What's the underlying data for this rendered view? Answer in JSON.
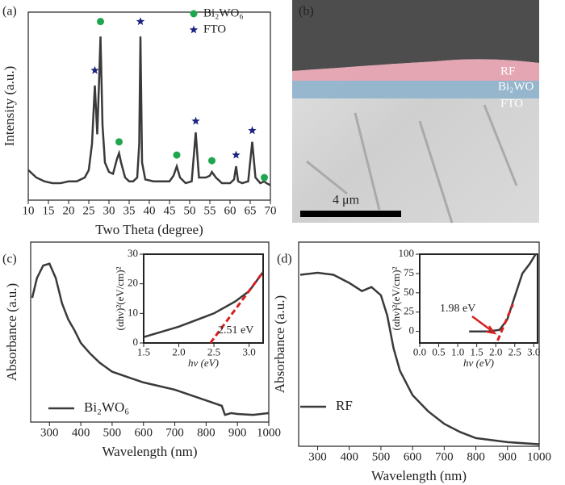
{
  "chart_data": [
    {
      "type": "line",
      "label": "(a)",
      "xlabel": "Two Theta (degree)",
      "ylabel": "Intensity (a.u.)",
      "xlim": [
        10,
        70
      ],
      "ylim": [
        0,
        100
      ],
      "xticks": [
        10,
        15,
        20,
        25,
        30,
        35,
        40,
        45,
        50,
        55,
        60,
        65,
        70
      ],
      "series": [
        {
          "color": "#3a3a3a",
          "x": [
            10,
            12,
            14,
            16,
            18,
            20,
            22,
            24,
            25,
            25.8,
            26.5,
            27.1,
            27.5,
            27.9,
            28.4,
            29,
            30,
            31,
            32,
            32.5,
            33,
            34,
            35,
            36,
            37,
            37.5,
            37.8,
            38.2,
            39,
            41,
            43,
            45,
            46,
            46.8,
            47.6,
            49,
            50.5,
            51.5,
            52.3,
            54,
            55,
            55.5,
            56.5,
            58,
            60,
            61,
            61.5,
            62,
            63,
            64.5,
            65.5,
            66.3,
            67.5,
            68.5,
            69,
            70
          ],
          "values": [
            16,
            12,
            10,
            9,
            9,
            10,
            10,
            12,
            16,
            30,
            61,
            35,
            60,
            87,
            40,
            20,
            15,
            14,
            22,
            25,
            20,
            12,
            10,
            10,
            12,
            30,
            87,
            20,
            11,
            10,
            10,
            10,
            13,
            18,
            12,
            9,
            10,
            36,
            12,
            12,
            13,
            15,
            12,
            9,
            9,
            11,
            18,
            10,
            9,
            10,
            31,
            12,
            9,
            10,
            9,
            8
          ]
        },
        {
          "name": "Bi₂WO₆",
          "marker": "circle",
          "color": "#1fa64f",
          "x": [
            27.9,
            32.5,
            46.8,
            55.5,
            68.5
          ],
          "values": [
            95,
            31,
            24,
            21,
            12
          ]
        },
        {
          "name": "FTO",
          "marker": "star",
          "color": "#1a237e",
          "x": [
            26.5,
            37.8,
            51.5,
            61.5,
            65.5
          ],
          "values": [
            69,
            95,
            42,
            24,
            37
          ]
        }
      ]
    },
    {
      "type": "line",
      "label": "(c)",
      "xlabel": "Wavelength (nm)",
      "ylabel": "Absorbance (a.u.)",
      "xlim": [
        240,
        1000
      ],
      "ylim": [
        0,
        100
      ],
      "xticks": [
        300,
        400,
        500,
        600,
        700,
        800,
        900,
        1000
      ],
      "series": [
        {
          "name": "Bi₂WO₆",
          "color": "#3a3a3a",
          "x": [
            245,
            260,
            280,
            300,
            320,
            340,
            360,
            380,
            400,
            430,
            460,
            500,
            550,
            600,
            650,
            700,
            750,
            800,
            850,
            860,
            880,
            900,
            950,
            1000
          ],
          "values": [
            69,
            80,
            87,
            88,
            80,
            66,
            57,
            51,
            44,
            38,
            33,
            28,
            25,
            22,
            20,
            18,
            15,
            12,
            9,
            4,
            5,
            4.5,
            4,
            5
          ]
        }
      ],
      "inset": {
        "type": "line",
        "xlabel": "hν (eV)",
        "ylabel": "(αhν)²(eV/cm)²",
        "annotation": "2.51 eV",
        "xlim": [
          1.5,
          3.2
        ],
        "ylim": [
          0,
          30
        ],
        "xticks": [
          1.5,
          {
            "value": 2.0,
            "label": "2.0"
          },
          2.5,
          {
            "value": 3.0,
            "label": "3.0"
          }
        ],
        "yticks": [
          0,
          10,
          20,
          30
        ],
        "series": [
          {
            "color": "#3a3a3a",
            "x": [
              1.5,
              2.0,
              2.5,
              2.8,
              3.0,
              3.2
            ],
            "values": [
              2,
              5.5,
              10,
              14,
              17.5,
              24
            ]
          },
          {
            "color": "#d62020",
            "dash": true,
            "x": [
              2.45,
              3.2
            ],
            "values": [
              0,
              24
            ]
          }
        ]
      }
    },
    {
      "type": "line",
      "label": "(d)",
      "xlabel": "Wavelength (nm)",
      "ylabel": "Absorbance (a.u.)",
      "xlim": [
        240,
        1000
      ],
      "ylim": [
        0,
        100
      ],
      "xticks": [
        300,
        400,
        500,
        600,
        700,
        800,
        900,
        1000
      ],
      "series": [
        {
          "name": "RF",
          "color": "#3a3a3a",
          "x": [
            245,
            300,
            350,
            400,
            440,
            470,
            500,
            520,
            540,
            560,
            600,
            650,
            700,
            750,
            800,
            850,
            900,
            1000
          ],
          "values": [
            84,
            85,
            84,
            80,
            76,
            78,
            74,
            64,
            48,
            37,
            25,
            17,
            11,
            7,
            4,
            3,
            2,
            1
          ]
        }
      ],
      "inset": {
        "type": "line",
        "xlabel": "hν (eV)",
        "ylabel": "(αhν)²(eV/cm)²",
        "annotation": "1.98 eV",
        "xlim": [
          0,
          3.1
        ],
        "ylim": [
          -15,
          100
        ],
        "xticks": [
          {
            "value": 0.0,
            "label": "0.0"
          },
          0.5,
          {
            "value": 1.0,
            "label": "1.0"
          },
          1.5,
          {
            "value": 2.0,
            "label": "2.0"
          },
          2.5,
          {
            "value": 3.0,
            "label": "3.0"
          }
        ],
        "yticks": [
          0,
          25,
          50,
          75,
          100
        ],
        "series": [
          {
            "color": "#3a3a3a",
            "x": [
              1.3,
              1.8,
              2.1,
              2.3,
              2.5,
              2.7,
              2.9,
              3.05
            ],
            "values": [
              0,
              0,
              2,
              15,
              45,
              75,
              88,
              100
            ]
          },
          {
            "color": "#d62020",
            "dash": true,
            "x": [
              2.05,
              2.45
            ],
            "values": [
              -12,
              35
            ]
          }
        ]
      }
    }
  ],
  "image": {
    "label": "(b)",
    "layers": [
      "RF",
      "Bi₂WO",
      "FTO"
    ],
    "scale_bar": "4 μm"
  }
}
